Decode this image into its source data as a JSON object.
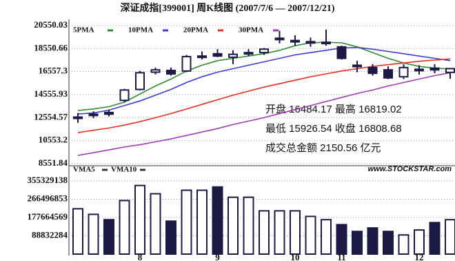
{
  "chart_data": [
    {
      "type": "candlestick",
      "title": "深证成指[399001] 周K线图 (2007/7/6 — 2007/12/21)",
      "open": [
        12500,
        12750,
        13000,
        14050,
        15000,
        16500,
        16650,
        16600,
        17800,
        18100,
        17800,
        18100,
        18200,
        19350,
        19200,
        19100,
        19050,
        18700,
        17100,
        16900,
        16700,
        16100,
        16700,
        16850,
        16484.17
      ],
      "high": [
        12950,
        13100,
        13250,
        15050,
        16600,
        16900,
        16900,
        18000,
        18300,
        18500,
        18400,
        18500,
        18600,
        20100,
        19700,
        19500,
        20200,
        18800,
        17500,
        17200,
        17000,
        17200,
        17100,
        17200,
        16819.02
      ],
      "low": [
        12100,
        12500,
        12650,
        13900,
        14900,
        16300,
        16200,
        16500,
        17600,
        17800,
        17200,
        17900,
        18000,
        19000,
        18800,
        18700,
        18800,
        17600,
        16500,
        16200,
        15900,
        15900,
        16300,
        16400,
        15926.54
      ],
      "close": [
        12600,
        12850,
        12850,
        14950,
        16450,
        16700,
        16350,
        17850,
        17900,
        17900,
        18050,
        18200,
        18500,
        19450,
        19250,
        19150,
        19100,
        17700,
        17000,
        16400,
        16000,
        16900,
        16750,
        16700,
        16808.68
      ],
      "color": "#1c1a45",
      "series": [
        {
          "name": "5PMA",
          "color": "#2e8b2e",
          "values": [
            13170,
            13300,
            13500,
            13900,
            14600,
            15300,
            15900,
            16600,
            17100,
            17500,
            17700,
            17900,
            18100,
            18400,
            18800,
            19050,
            19100,
            19050,
            18700,
            18200,
            17700,
            17300,
            17000,
            16850,
            16770
          ]
        },
        {
          "name": "10PMA",
          "color": "#3a3ad0",
          "values": [
            12870,
            12950,
            13200,
            13600,
            14000,
            14500,
            15000,
            15600,
            16100,
            16500,
            16800,
            17100,
            17400,
            17700,
            18000,
            18200,
            18400,
            18600,
            18650,
            18500,
            18300,
            18100,
            17900,
            17700,
            17500
          ]
        },
        {
          "name": "20PMA",
          "color": "#e03020",
          "values": [
            11250,
            11450,
            11650,
            11900,
            12200,
            12550,
            12900,
            13300,
            13700,
            14100,
            14500,
            14850,
            15200,
            15500,
            15800,
            16100,
            16350,
            16600,
            16800,
            17000,
            17150,
            17300,
            17450,
            17550,
            17650
          ]
        },
        {
          "name": "30PMA",
          "color": "#9b3cb0",
          "values": [
            9270,
            9500,
            9750,
            10000,
            10200,
            10450,
            10700,
            11000,
            11300,
            11600,
            11950,
            12250,
            12550,
            12900,
            13250,
            13600,
            13950,
            14300,
            14650,
            14950,
            15300,
            15600,
            15900,
            16200,
            16450
          ]
        }
      ],
      "ylim": [
        8551.84,
        20550.03
      ],
      "yticks": [
        8551.84,
        10553.2,
        12554.57,
        14555.93,
        16557.3,
        18550.66,
        20550.03
      ],
      "grid": true,
      "annotation": [
        "开盘 16484.17 最高 16819.02",
        "最低 15926.54 收盘 16808.68",
        "成交总金额 2150.56 亿元"
      ],
      "source": "www.STOCKSTAR.com"
    },
    {
      "type": "bar",
      "legend": [
        "VMA5",
        "VMA10"
      ],
      "categories": [
        null,
        null,
        null,
        null,
        "8",
        null,
        null,
        null,
        null,
        "9",
        null,
        null,
        null,
        null,
        "10",
        null,
        null,
        "11",
        null,
        null,
        null,
        null,
        "12",
        null,
        null
      ],
      "values": [
        220000000,
        193000000,
        167000000,
        260000000,
        333000000,
        293000000,
        160000000,
        310000000,
        310000000,
        326000000,
        276000000,
        276000000,
        210000000,
        210000000,
        210000000,
        183000000,
        167000000,
        143000000,
        110000000,
        127000000,
        110000000,
        93000000,
        117000000,
        153000000,
        167000000
      ],
      "color": "#1c1a45",
      "ylim": [
        0,
        355329138
      ],
      "yticks": [
        88832284,
        177664569,
        266496853,
        355329138
      ],
      "grid": true
    }
  ]
}
